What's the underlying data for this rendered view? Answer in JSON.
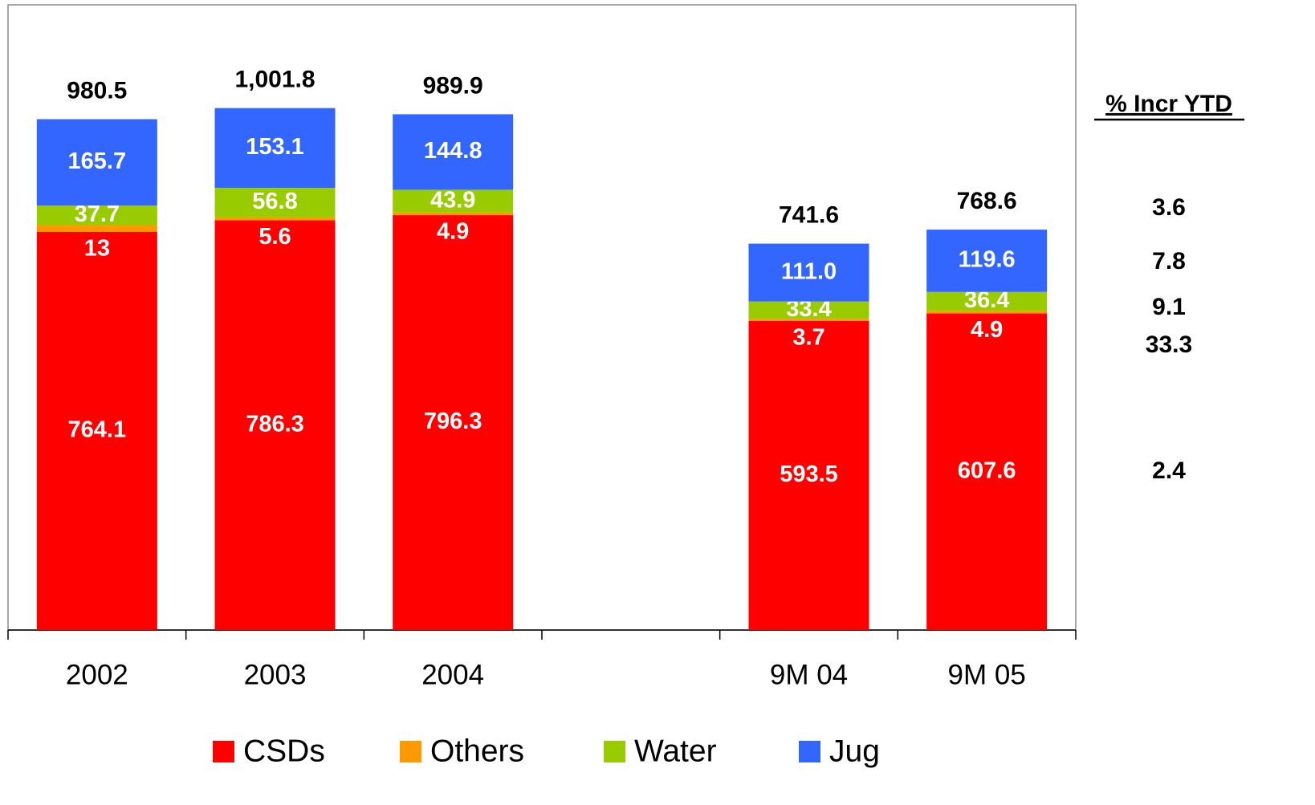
{
  "chart_data": {
    "type": "stacked-bar",
    "categories": [
      "2002",
      "2003",
      "2004",
      null,
      "9M 04",
      "9M 05"
    ],
    "series": [
      {
        "name": "CSDs",
        "color": "#ff0000",
        "values": [
          764.1,
          786.3,
          796.3,
          null,
          593.5,
          607.6
        ],
        "value_labels": [
          "764.1",
          "786.3",
          "796.3",
          null,
          "593.5",
          "607.6"
        ]
      },
      {
        "name": "Others",
        "color": "#ff9900",
        "values": [
          13,
          5.6,
          4.9,
          null,
          3.7,
          4.9
        ],
        "value_labels": [
          "13",
          "5.6",
          "4.9",
          null,
          "3.7",
          "4.9"
        ]
      },
      {
        "name": "Water",
        "color": "#99cc00",
        "values": [
          37.7,
          56.8,
          43.9,
          null,
          33.4,
          36.4
        ],
        "value_labels": [
          "37.7",
          "56.8",
          "43.9",
          null,
          "33.4",
          "36.4"
        ]
      },
      {
        "name": "Jug",
        "color": "#3366ff",
        "values": [
          165.7,
          153.1,
          144.8,
          null,
          111.0,
          119.6
        ],
        "value_labels": [
          "165.7",
          "153.1",
          "144.8",
          null,
          "111.0",
          "119.6"
        ]
      }
    ],
    "totals": [
      980.5,
      1001.8,
      989.9,
      null,
      741.6,
      768.6
    ],
    "total_labels": [
      "980.5",
      "1,001.8",
      "989.9",
      null,
      "741.6",
      "768.6"
    ],
    "ylim": [
      0,
      1200
    ],
    "side_table": {
      "title": "% Incr YTD",
      "values": [
        3.6,
        7.8,
        9.1,
        33.3,
        2.4
      ]
    }
  }
}
